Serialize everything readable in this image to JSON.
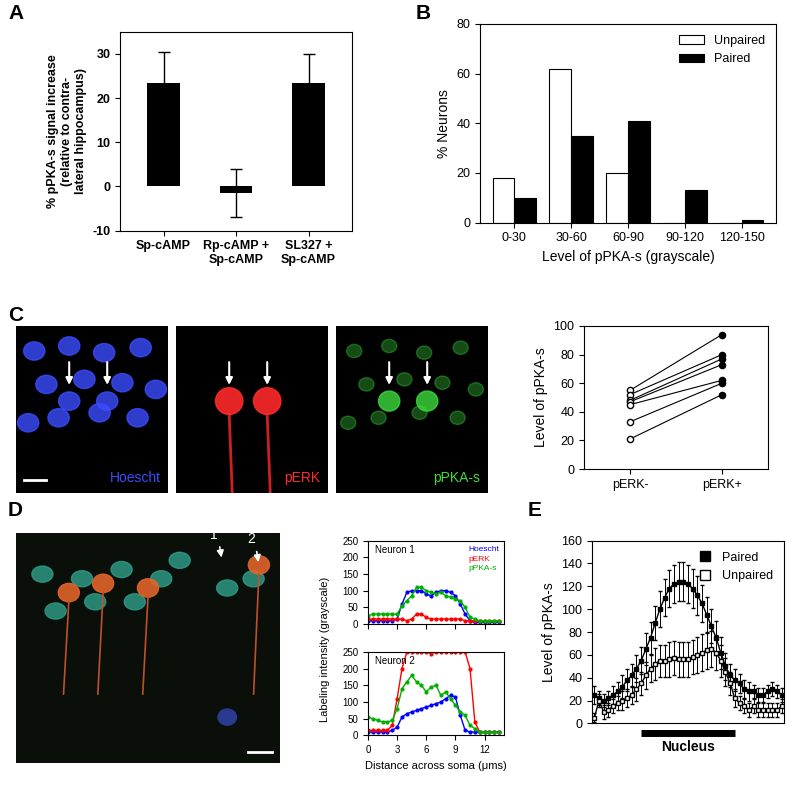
{
  "chart_data": [
    {
      "panel": "A",
      "type": "bar",
      "categories": [
        "Sp-cAMP",
        "Rp-cAMP +\nSp-cAMP",
        "SL327 +\nSp-cAMP"
      ],
      "values": [
        23.5,
        -1.5,
        23.5
      ],
      "errors": [
        7,
        5.5,
        6.5
      ],
      "color": "#000000",
      "ylabel": "% pPKA-s signal increase\n(relative to contra-\nlateral hippocampus)",
      "ylim": [
        -10,
        35
      ],
      "yticks": [
        -10,
        0,
        10,
        20,
        30
      ]
    },
    {
      "panel": "B",
      "type": "bar",
      "categories": [
        "0-30",
        "30-60",
        "60-90",
        "90-120",
        "120-150"
      ],
      "series": [
        {
          "name": "Unpaired",
          "color": "#ffffff",
          "values": [
            18,
            62,
            20,
            0,
            0
          ]
        },
        {
          "name": "Paired",
          "color": "#000000",
          "values": [
            10,
            35,
            41,
            13,
            1
          ]
        }
      ],
      "xlabel": "Level of pPKA-s (grayscale)",
      "ylabel": "% Neurons",
      "ylim": [
        0,
        80
      ],
      "yticks": [
        0,
        20,
        40,
        60,
        80
      ],
      "legend": "upper right"
    },
    {
      "panel": "C",
      "type": "image",
      "channels": [
        {
          "name": "Hoescht",
          "color": "#3a4dff"
        },
        {
          "name": "pERK",
          "color": "#ff2a2a"
        },
        {
          "name": "pPKA-s",
          "color": "#3ddc3d"
        }
      ]
    },
    {
      "type": "line",
      "categories": [
        "pERK-",
        "pERK+"
      ],
      "series": [
        {
          "values": [
            55,
            94
          ]
        },
        {
          "values": [
            52,
            80
          ]
        },
        {
          "values": [
            48,
            77
          ]
        },
        {
          "values": [
            47,
            73
          ]
        },
        {
          "values": [
            45,
            62
          ]
        },
        {
          "values": [
            33,
            60
          ]
        },
        {
          "values": [
            21,
            52
          ]
        }
      ],
      "ylabel": "Level of pPKA-s",
      "ylim": [
        0,
        100
      ],
      "yticks": [
        0,
        20,
        40,
        60,
        80,
        100
      ]
    },
    {
      "panel": "D",
      "type": "image",
      "labels": [
        "1",
        "2"
      ]
    },
    {
      "type": "line",
      "title": "Neuron 1",
      "x": [
        0,
        0.5,
        1,
        1.5,
        2,
        2.5,
        3,
        3.5,
        4,
        4.5,
        5,
        5.5,
        6,
        6.5,
        7,
        7.5,
        8,
        8.5,
        9,
        9.5,
        10,
        10.5,
        11,
        11.5,
        12,
        12.5,
        13,
        13.5
      ],
      "series": [
        {
          "name": "Hoescht",
          "color": "#0000ff",
          "values": [
            10,
            10,
            10,
            10,
            10,
            10,
            15,
            60,
            95,
            100,
            100,
            100,
            90,
            85,
            95,
            100,
            100,
            95,
            85,
            60,
            30,
            10,
            5,
            5,
            5,
            5,
            5,
            5
          ]
        },
        {
          "name": "pERK",
          "color": "#ff0000",
          "values": [
            15,
            15,
            15,
            15,
            15,
            15,
            15,
            15,
            10,
            15,
            30,
            30,
            20,
            15,
            15,
            15,
            15,
            15,
            15,
            15,
            10,
            10,
            10,
            10,
            10,
            10,
            10,
            10
          ]
        },
        {
          "name": "pPKA-s",
          "color": "#00b000",
          "values": [
            25,
            30,
            30,
            30,
            30,
            30,
            30,
            55,
            70,
            85,
            110,
            110,
            100,
            95,
            90,
            95,
            85,
            80,
            75,
            70,
            50,
            20,
            15,
            10,
            10,
            10,
            10,
            10
          ]
        }
      ],
      "ylabel": "Labeling intensity (grayscale)",
      "xlim": [
        0,
        14
      ],
      "xticks": [
        0,
        3,
        6,
        9,
        12
      ],
      "ylim": [
        0,
        250
      ],
      "yticks": [
        0,
        50,
        100,
        150,
        200,
        250
      ],
      "legend": "upper right",
      "tick_labels": "y"
    },
    {
      "type": "line",
      "title": "Neuron 2",
      "x": [
        0,
        0.5,
        1,
        1.5,
        2,
        2.5,
        3,
        3.5,
        4,
        4.5,
        5,
        5.5,
        6,
        6.5,
        7,
        7.5,
        8,
        8.5,
        9,
        9.5,
        10,
        10.5,
        11,
        11.5,
        12,
        12.5,
        13,
        13.5
      ],
      "series": [
        {
          "name": "Hoescht",
          "color": "#0000ff",
          "values": [
            10,
            10,
            10,
            10,
            10,
            15,
            25,
            55,
            65,
            70,
            75,
            80,
            85,
            90,
            95,
            100,
            110,
            120,
            115,
            60,
            15,
            10,
            10,
            10,
            10,
            10,
            10,
            10
          ]
        },
        {
          "name": "pERK",
          "color": "#ff0000",
          "values": [
            15,
            15,
            15,
            15,
            15,
            30,
            110,
            200,
            250,
            250,
            250,
            250,
            250,
            245,
            250,
            250,
            250,
            250,
            250,
            250,
            250,
            200,
            40,
            10,
            10,
            10,
            10,
            10
          ]
        },
        {
          "name": "pPKA-s",
          "color": "#00b000",
          "values": [
            55,
            50,
            45,
            40,
            40,
            45,
            80,
            140,
            160,
            180,
            160,
            150,
            130,
            145,
            150,
            120,
            130,
            110,
            90,
            70,
            60,
            30,
            20,
            10,
            10,
            10,
            10,
            10
          ]
        }
      ],
      "xlabel": "Distance across soma (μms)",
      "xlim": [
        0,
        14
      ],
      "xticks": [
        0,
        3,
        6,
        9,
        12
      ],
      "ylim": [
        0,
        250
      ],
      "yticks": [
        0,
        50,
        100,
        150,
        200,
        250
      ]
    },
    {
      "panel": "E",
      "type": "line",
      "series": [
        {
          "name": "Paired",
          "color": "#000000",
          "marker": "square",
          "values": [
            25,
            22,
            20,
            22,
            25,
            28,
            32,
            38,
            42,
            48,
            55,
            65,
            75,
            88,
            100,
            110,
            118,
            122,
            124,
            124,
            122,
            118,
            112,
            105,
            95,
            85,
            75,
            62,
            50,
            42,
            38,
            35,
            30,
            28,
            28,
            25,
            25,
            28,
            30,
            28,
            25
          ],
          "errors": [
            8,
            6,
            6,
            6,
            8,
            8,
            10,
            10,
            10,
            12,
            12,
            14,
            14,
            15,
            16,
            16,
            16,
            17,
            17,
            17,
            17,
            17,
            17,
            16,
            16,
            15,
            15,
            14,
            12,
            10,
            10,
            8,
            8,
            8,
            6,
            6,
            6,
            6,
            6,
            6,
            6
          ]
        },
        {
          "name": "Unpaired",
          "color": "#ffffff",
          "marker": "square",
          "values": [
            5,
            20,
            10,
            12,
            15,
            18,
            20,
            22,
            25,
            30,
            35,
            42,
            48,
            52,
            55,
            55,
            56,
            57,
            56,
            56,
            56,
            58,
            60,
            62,
            64,
            65,
            62,
            55,
            45,
            35,
            22,
            18,
            15,
            12,
            15,
            12,
            12,
            12,
            12,
            12,
            15
          ],
          "errors": [
            4,
            6,
            6,
            6,
            6,
            6,
            8,
            8,
            8,
            10,
            10,
            12,
            12,
            14,
            14,
            14,
            15,
            15,
            15,
            15,
            15,
            15,
            16,
            16,
            16,
            16,
            15,
            14,
            12,
            10,
            8,
            6,
            6,
            6,
            6,
            6,
            6,
            6,
            6,
            6,
            6
          ]
        }
      ],
      "ylabel": "Level of pPKA-s",
      "ylim": [
        0,
        160
      ],
      "yticks": [
        0,
        20,
        40,
        60,
        80,
        100,
        120,
        140,
        160
      ],
      "annotations": [
        {
          "text": "Nucleus",
          "x": [
            10,
            30
          ]
        }
      ],
      "legend": "upper right",
      "tick_labels": "y"
    }
  ]
}
